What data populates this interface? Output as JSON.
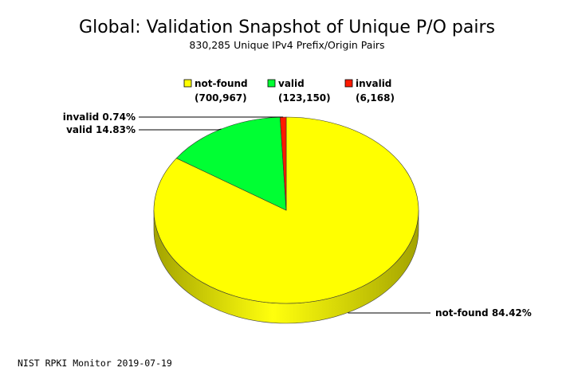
{
  "chart_data": {
    "type": "pie",
    "title": "Global: Validation Snapshot of Unique P/O pairs",
    "subtitle": "830,285 Unique IPv4 Prefix/Origin Pairs",
    "slices": [
      {
        "name": "not-found",
        "count": 700967,
        "count_label": "(700,967)",
        "percent": 84.42,
        "slice_label": "not-found 84.42%",
        "color": "#ffff00",
        "side_color": "#a3a300"
      },
      {
        "name": "valid",
        "count": 123150,
        "count_label": "(123,150)",
        "percent": 14.83,
        "slice_label": "valid 14.83%",
        "color": "#00ff33",
        "side_color": "#009a1f"
      },
      {
        "name": "invalid",
        "count": 6168,
        "count_label": "(6,168)",
        "percent": 0.74,
        "slice_label": "invalid 0.74%",
        "color": "#ff1a00",
        "side_color": "#9a1000"
      }
    ],
    "legend_placement": "top",
    "three_d": true
  },
  "footer": "NIST RPKI Monitor 2019-07-19"
}
